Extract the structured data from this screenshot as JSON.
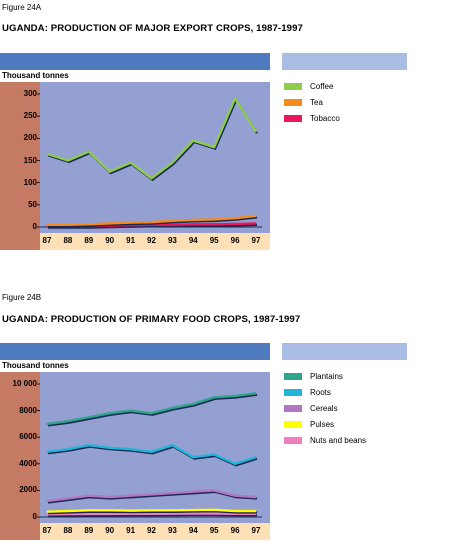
{
  "charts": [
    {
      "figure_label": "Figure 24A",
      "title": "UGANDA: PRODUCTION OF MAJOR EXPORT CROPS, 1987-1997",
      "unit_label": "Thousand tonnes"
    },
    {
      "figure_label": "Figure 24B",
      "title": "UGANDA: PRODUCTION OF PRIMARY FOOD CROPS, 1987-1997",
      "unit_label": "Thousand tonnes"
    }
  ],
  "chart_data": [
    {
      "type": "line",
      "title": "UGANDA: PRODUCTION OF MAJOR EXPORT CROPS, 1987-1997",
      "ylabel": "Thousand tonnes",
      "categories": [
        "87",
        "88",
        "89",
        "90",
        "91",
        "92",
        "93",
        "94",
        "95",
        "96",
        "97"
      ],
      "yticks": [
        0,
        50,
        100,
        150,
        200,
        250,
        300
      ],
      "ytick_labels": [
        "0",
        "50",
        "100",
        "150",
        "200",
        "250",
        "300"
      ],
      "ylim": [
        0,
        310
      ],
      "grid": false,
      "legend_position": "right",
      "series": [
        {
          "name": "Coffee",
          "color": "#8dcc4e",
          "values": [
            165,
            150,
            170,
            125,
            145,
            110,
            145,
            195,
            180,
            290,
            215
          ]
        },
        {
          "name": "Tea",
          "color": "#f58a1e",
          "values": [
            5,
            5,
            6,
            8,
            10,
            11,
            14,
            16,
            17,
            20,
            25
          ]
        },
        {
          "name": "Tobacco",
          "color": "#e8185a",
          "values": [
            2,
            2,
            2,
            3,
            4,
            5,
            5,
            6,
            6,
            7,
            8
          ]
        }
      ]
    },
    {
      "type": "line",
      "title": "UGANDA: PRODUCTION OF PRIMARY FOOD CROPS, 1987-1997",
      "ylabel": "Thousand tonnes",
      "categories": [
        "87",
        "88",
        "89",
        "90",
        "91",
        "92",
        "93",
        "94",
        "95",
        "96",
        "97"
      ],
      "yticks": [
        0,
        2000,
        4000,
        6000,
        8000,
        10000
      ],
      "ytick_labels": [
        "0",
        "2000",
        "4000",
        "6000",
        "8000",
        "10 000"
      ],
      "ylim": [
        0,
        10300
      ],
      "grid": false,
      "legend_position": "right",
      "series": [
        {
          "name": "Plantains",
          "color": "#2fa58c",
          "values": [
            7000,
            7200,
            7500,
            7800,
            8000,
            7800,
            8200,
            8500,
            9000,
            9100,
            9300
          ]
        },
        {
          "name": "Roots",
          "color": "#21b6d8",
          "values": [
            4900,
            5100,
            5400,
            5200,
            5100,
            4900,
            5400,
            4500,
            4700,
            4000,
            4500
          ]
        },
        {
          "name": "Cereals",
          "color": "#b176c4",
          "values": [
            1200,
            1400,
            1600,
            1500,
            1600,
            1700,
            1800,
            1900,
            2000,
            1600,
            1500
          ]
        },
        {
          "name": "Pulses",
          "color": "#ffff00",
          "values": [
            400,
            450,
            500,
            500,
            480,
            500,
            500,
            520,
            540,
            450,
            450
          ]
        },
        {
          "name": "Nuts and beans",
          "color": "#f07fbf",
          "values": [
            200,
            220,
            230,
            230,
            240,
            240,
            250,
            260,
            260,
            240,
            240
          ]
        }
      ]
    }
  ]
}
